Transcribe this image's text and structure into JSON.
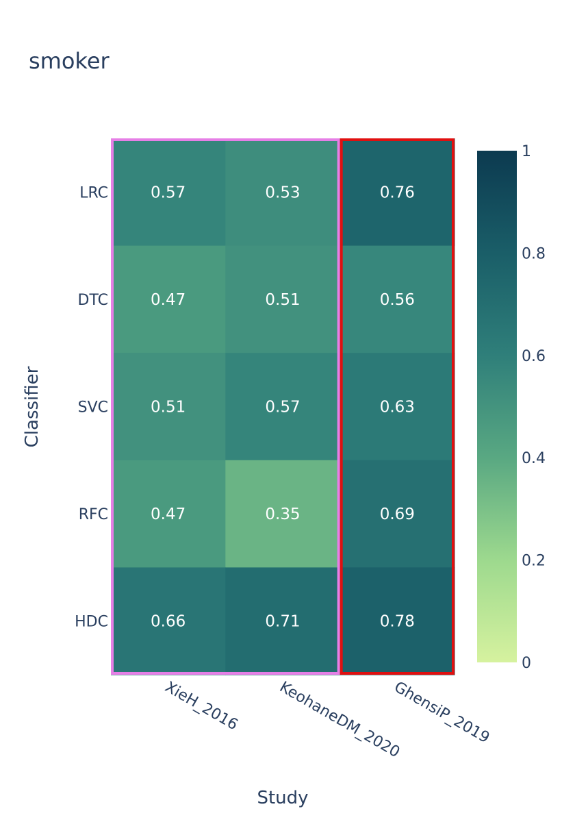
{
  "chart_data": {
    "type": "heatmap",
    "title": "smoker",
    "xlabel": "Study",
    "ylabel": "Classifier",
    "x": [
      "XieH_2016",
      "KeohaneDM_2020",
      "GhensiP_2019"
    ],
    "y": [
      "LRC",
      "DTC",
      "SVC",
      "RFC",
      "HDC"
    ],
    "z": [
      [
        0.57,
        0.53,
        0.76
      ],
      [
        0.47,
        0.51,
        0.56
      ],
      [
        0.51,
        0.57,
        0.63
      ],
      [
        0.47,
        0.35,
        0.69
      ],
      [
        0.66,
        0.71,
        0.78
      ]
    ],
    "zlim": [
      0,
      1
    ],
    "colorscale": "YlGnBu-teal",
    "colorbar_ticks": [
      "0",
      "0.2",
      "0.4",
      "0.6",
      "0.8",
      "1"
    ],
    "highlight_groups": [
      {
        "columns": [
          "XieH_2016",
          "KeohaneDM_2020"
        ],
        "color": "#e67fe6"
      },
      {
        "columns": [
          "GhensiP_2019"
        ],
        "color": "#e01010"
      }
    ]
  }
}
